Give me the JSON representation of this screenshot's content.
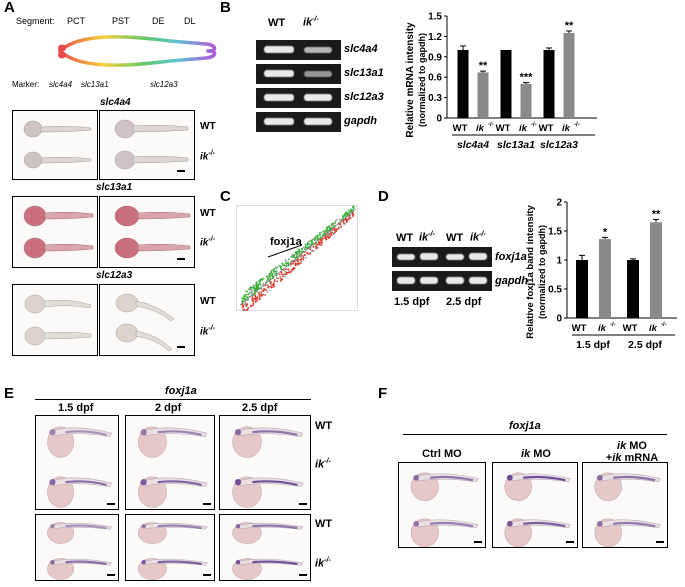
{
  "panels": {
    "A": "A",
    "B": "B",
    "C": "C",
    "D": "D",
    "E": "E",
    "F": "F"
  },
  "panelA": {
    "segment_label": "Segment:",
    "segments": [
      "PCT",
      "PST",
      "DE",
      "DL"
    ],
    "marker_label": "Marker:",
    "markers": [
      "slc4a4",
      "slc13a1",
      "slc12a3"
    ],
    "genes": [
      "slc4a4",
      "slc13a1",
      "slc12a3"
    ],
    "wt": "WT",
    "ik": "ik",
    "sup": "-/-",
    "colors": {
      "pct": "#e84a4a",
      "pst": "#f5d23c",
      "de": "#5ec4d0",
      "dl": "#b05bd6"
    }
  },
  "panelB": {
    "gel_header_wt": "WT",
    "gel_header_ik": "ik",
    "gel_genes": [
      "slc4a4",
      "slc13a1",
      "slc12a3",
      "gapdh"
    ],
    "chart": {
      "type": "bar",
      "ylabel_line1": "Relative mRNA intensity",
      "ylabel_line2": "(normalized to gapdh)",
      "ylim": [
        0,
        1.5
      ],
      "yticks": [
        "0",
        "0.3",
        "0.6",
        "0.9",
        "1.2",
        "1.5"
      ],
      "groups": [
        "slc4a4",
        "slc13a1",
        "slc12a3"
      ],
      "bar_labels": [
        "WT",
        "ik",
        "WT",
        "ik",
        "WT",
        "ik"
      ],
      "values": [
        1.0,
        0.67,
        1.0,
        0.5,
        1.0,
        1.25
      ],
      "errors": [
        0.06,
        0.02,
        0.0,
        0.02,
        0.03,
        0.03
      ],
      "colors": [
        "#000000",
        "#8a8a8a",
        "#000000",
        "#8a8a8a",
        "#000000",
        "#8a8a8a"
      ],
      "significance": [
        "",
        "**",
        "",
        "***",
        "",
        "**"
      ]
    }
  },
  "panelC": {
    "label": "foxj1a"
  },
  "panelD": {
    "gel_headers": [
      "WT",
      "ik",
      "WT",
      "ik"
    ],
    "gel_genes": [
      "foxj1a",
      "gapdh"
    ],
    "stages": [
      "1.5 dpf",
      "2.5 dpf"
    ],
    "chart": {
      "type": "bar",
      "ylabel_line1": "Relative foxj1a band intensity",
      "ylabel_line2": "(normalized to gapdh)",
      "ylim": [
        0,
        2
      ],
      "yticks": [
        "0",
        "0.5",
        "1",
        "1.5",
        "2"
      ],
      "bar_labels": [
        "WT",
        "ik",
        "WT",
        "ik"
      ],
      "values": [
        1.0,
        1.36,
        1.0,
        1.65
      ],
      "errors": [
        0.08,
        0.03,
        0.02,
        0.05
      ],
      "colors": [
        "#000000",
        "#8a8a8a",
        "#000000",
        "#8a8a8a"
      ],
      "significance": [
        "",
        "*",
        "",
        "**"
      ],
      "stages": [
        "1.5 dpf",
        "2.5 dpf"
      ]
    }
  },
  "panelE": {
    "gene": "foxj1a",
    "stages": [
      "1.5 dpf",
      "2 dpf",
      "2.5 dpf"
    ],
    "wt": "WT",
    "ik": "ik"
  },
  "panelF": {
    "gene": "foxj1a",
    "cond1": "Ctrl MO",
    "cond2_it": "ik",
    "cond2": " MO",
    "cond3_line1_it": "ik",
    "cond3_line1": " MO",
    "cond3_line2_pre": "+",
    "cond3_line2_it": "ik",
    "cond3_line2": " mRNA"
  }
}
